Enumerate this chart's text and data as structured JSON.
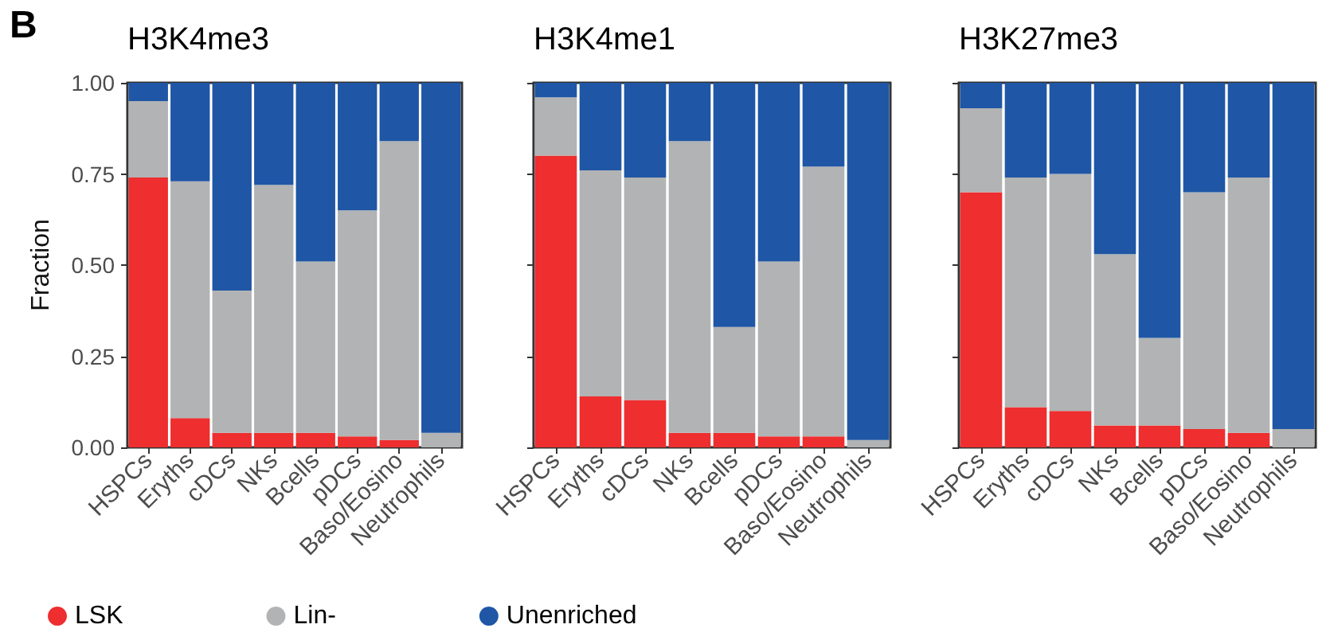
{
  "chart_data": [
    {
      "type": "bar",
      "title": "H3K4me3",
      "ylabel": "Fraction",
      "annotations": [
        "B"
      ],
      "stacked": true,
      "legend": "bottom",
      "grid": false,
      "categories": [
        "HSPCs",
        "Eryths",
        "cDCs",
        "NKs",
        "Bcells",
        "pDCs",
        "Baso/Eosino",
        "Neutrophils"
      ],
      "ylim": [
        0,
        1
      ],
      "yticks": [
        {
          "value": 0,
          "label": "0.00"
        },
        {
          "value": 0.25,
          "label": "0.25"
        },
        {
          "value": 0.5,
          "label": "0.50"
        },
        {
          "value": 0.75,
          "label": "0.75"
        },
        {
          "value": 1,
          "label": "1.00"
        }
      ],
      "series": [
        {
          "name": "LSK",
          "color": "#ee2e2f",
          "values": [
            0.74,
            0.08,
            0.04,
            0.04,
            0.04,
            0.03,
            0.02,
            0
          ]
        },
        {
          "name": "Lin-",
          "color": "#b1b3b4",
          "values": [
            0.21,
            0.65,
            0.39,
            0.68,
            0.47,
            0.62,
            0.82,
            0.04
          ]
        },
        {
          "name": "Unenriched",
          "color": "#1f56a5",
          "values": [
            0.05,
            0.27,
            0.57,
            0.28,
            0.49,
            0.35,
            0.16,
            0.96
          ]
        }
      ]
    },
    {
      "type": "bar",
      "title": "H3K4me1",
      "stacked": true,
      "grid": false,
      "tick_labels": "x",
      "categories": [
        "HSPCs",
        "Eryths",
        "cDCs",
        "NKs",
        "Bcells",
        "pDCs",
        "Baso/Eosino",
        "Neutrophils"
      ],
      "ylim": [
        0,
        1
      ],
      "yticks": [
        {
          "value": 0,
          "label": null
        },
        {
          "value": 0.25,
          "label": null
        },
        {
          "value": 0.5,
          "label": null
        },
        {
          "value": 0.75,
          "label": null
        },
        {
          "value": 1,
          "label": null
        }
      ],
      "series": [
        {
          "color": "#ee2e2f",
          "values": [
            0.8,
            0.14,
            0.13,
            0.04,
            0.04,
            0.03,
            0.03,
            0
          ]
        },
        {
          "color": "#b1b3b4",
          "values": [
            0.16,
            0.62,
            0.61,
            0.8,
            0.29,
            0.48,
            0.74,
            0.02
          ]
        },
        {
          "color": "#1f56a5",
          "values": [
            0.04,
            0.24,
            0.26,
            0.16,
            0.67,
            0.49,
            0.23,
            0.98
          ]
        }
      ]
    },
    {
      "type": "bar",
      "title": "H3K27me3",
      "stacked": true,
      "grid": false,
      "tick_labels": "x",
      "categories": [
        "HSPCs",
        "Eryths",
        "cDCs",
        "NKs",
        "Bcells",
        "pDCs",
        "Baso/Eosino",
        "Neutrophils"
      ],
      "ylim": [
        0,
        1
      ],
      "yticks": [
        {
          "value": 0,
          "label": null
        },
        {
          "value": 0.25,
          "label": null
        },
        {
          "value": 0.5,
          "label": null
        },
        {
          "value": 0.75,
          "label": null
        },
        {
          "value": 1,
          "label": null
        }
      ],
      "series": [
        {
          "color": "#ee2e2f",
          "values": [
            0.7,
            0.11,
            0.1,
            0.06,
            0.06,
            0.05,
            0.04,
            0
          ]
        },
        {
          "color": "#b1b3b4",
          "values": [
            0.23,
            0.63,
            0.65,
            0.47,
            0.24,
            0.65,
            0.7,
            0.05
          ]
        },
        {
          "color": "#1f56a5",
          "values": [
            0.07,
            0.26,
            0.25,
            0.47,
            0.7,
            0.3,
            0.26,
            0.95
          ]
        }
      ]
    }
  ]
}
